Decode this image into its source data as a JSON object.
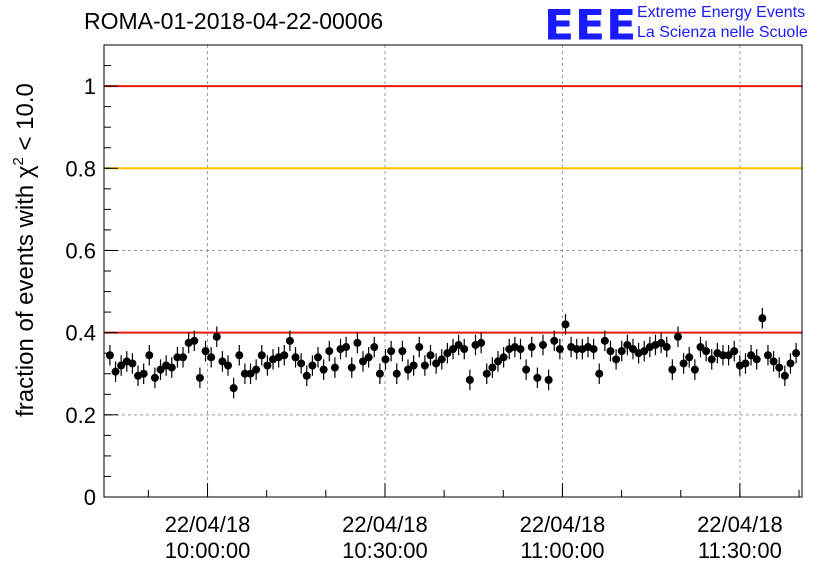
{
  "header": {
    "title": "ROMA-01-2018-04-22-00006",
    "logo_text": "EEE",
    "logo_line1": "Extreme Energy Events",
    "logo_line2": "La Scienza nelle Scuole"
  },
  "colors": {
    "red_line": "#e8190c",
    "yellow_line": "#ffc000",
    "markers": "#000000",
    "logo": "#1a1aff"
  },
  "chart_data": {
    "type": "scatter",
    "title": "ROMA-01-2018-04-22-00006",
    "ylabel_prefix": "fraction of events with ",
    "ylabel_symbol": "χ",
    "ylabel_sup": "2",
    "ylabel_suffix": " < 10.0",
    "xlabel": "",
    "x_unit": "minutes after 22/04/18 09:30:00",
    "xlim": [
      36,
      154
    ],
    "ylim": [
      0,
      1.1
    ],
    "grid": true,
    "y_ticks": [
      0,
      0.2,
      0.4,
      0.6,
      0.8,
      1
    ],
    "y_tick_labels": [
      "0",
      "0.2",
      "0.4",
      "0.6",
      "0.8",
      "1"
    ],
    "x_ticks": [
      {
        "x": 53.5,
        "date": "22/04/18",
        "time": "10:00:00"
      },
      {
        "x": 83.5,
        "date": "22/04/18",
        "time": "10:30:00"
      },
      {
        "x": 113.5,
        "date": "22/04/18",
        "time": "11:00:00"
      },
      {
        "x": 143.5,
        "date": "22/04/18",
        "time": "11:30:00"
      }
    ],
    "reference_lines": [
      {
        "y": 1.0,
        "color": "#e8190c"
      },
      {
        "y": 0.8,
        "color": "#ffc000"
      },
      {
        "y": 0.4,
        "color": "#e8190c"
      }
    ],
    "error": 0.025,
    "points": [
      0.345,
      0.305,
      0.32,
      0.33,
      0.325,
      0.295,
      0.3,
      0.345,
      0.29,
      0.31,
      0.32,
      0.315,
      0.34,
      0.34,
      0.375,
      0.38,
      0.29,
      0.355,
      0.34,
      0.39,
      0.33,
      0.32,
      0.265,
      0.345,
      0.3,
      0.3,
      0.31,
      0.345,
      0.32,
      0.335,
      0.34,
      0.345,
      0.38,
      0.34,
      0.325,
      0.295,
      0.32,
      0.34,
      0.31,
      0.355,
      0.315,
      0.36,
      0.365,
      0.315,
      0.375,
      0.33,
      0.34,
      0.365,
      0.3,
      0.335,
      0.355,
      0.3,
      0.355,
      0.31,
      0.32,
      0.365,
      0.32,
      0.345,
      0.325,
      0.335,
      0.35,
      0.36,
      0.37,
      0.36,
      0.285,
      0.37,
      0.375,
      0.3,
      0.315,
      0.33,
      0.34,
      0.36,
      0.365,
      0.36,
      0.31,
      0.365,
      0.29,
      0.37,
      0.285,
      0.38,
      0.36,
      0.42,
      0.365,
      0.36,
      0.36,
      0.365,
      0.36,
      0.3,
      0.38,
      0.355,
      0.335,
      0.355,
      0.37,
      0.36,
      0.35,
      0.355,
      0.365,
      0.37,
      0.375,
      0.365,
      0.31,
      0.39,
      0.325,
      0.34,
      0.31,
      0.365,
      0.355,
      0.335,
      0.35,
      0.345,
      0.345,
      0.355,
      0.32,
      0.325,
      0.345,
      0.335,
      0.435,
      0.345,
      0.33,
      0.315,
      0.295,
      0.325,
      0.35
    ]
  }
}
